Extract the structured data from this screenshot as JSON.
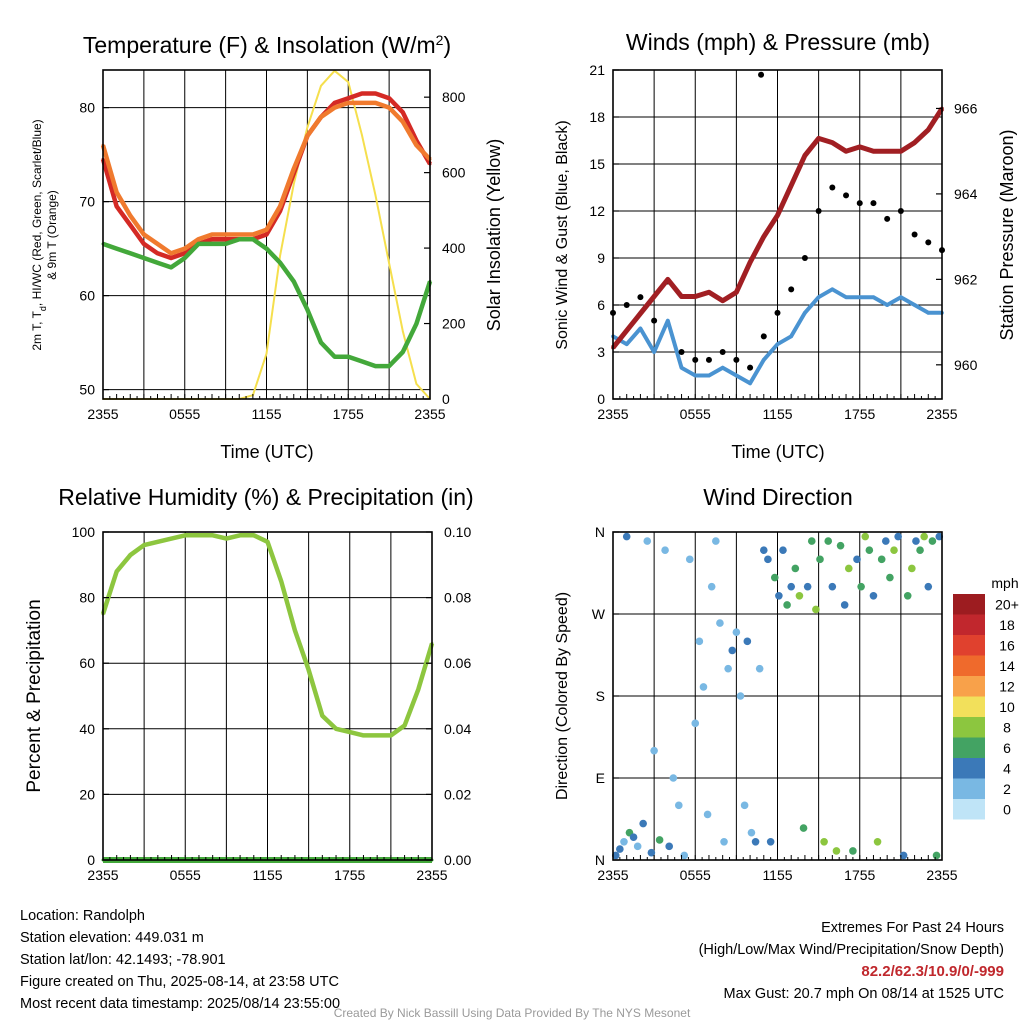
{
  "chart_data": [
    {
      "type": "line",
      "title": "Temperature (F) & Insolation (W/m",
      "title_sup": "2",
      "title_close": ")",
      "xlabel": "Time (UTC)",
      "ylabel_line1": "2m T, T",
      "ylabel_sub": "d",
      "ylabel_line1_rest": ", HI/WC (Red, Green, Scarlet/Blue)",
      "ylabel_line2": "& 9m T (Orange)",
      "ylabel_right": "Solar Insolation (Yellow)",
      "x_ticks": [
        "2355",
        "0555",
        "1155",
        "1755",
        "2355"
      ],
      "ylim": [
        49,
        84
      ],
      "y_ticks": [
        50,
        60,
        70,
        80
      ],
      "ylim_right": [
        0,
        872
      ],
      "y_ticks_right": [
        0,
        200,
        400,
        600,
        800
      ],
      "x": [
        0,
        1,
        2,
        3,
        4,
        5,
        6,
        7,
        8,
        9,
        10,
        11,
        12,
        13,
        14,
        15,
        16,
        17,
        18,
        19,
        20,
        21,
        22,
        23,
        24
      ],
      "series": [
        {
          "name": "2m T",
          "color": "#d42a25",
          "values": [
            74.5,
            69.5,
            67.5,
            65.5,
            64.5,
            64.0,
            64.5,
            65.5,
            66.0,
            66.0,
            66.0,
            66.0,
            66.5,
            69.0,
            73.0,
            77.0,
            79.0,
            80.5,
            81.0,
            81.5,
            81.5,
            81.0,
            79.5,
            76.5,
            74.0
          ]
        },
        {
          "name": "9m T",
          "color": "#f07a2e",
          "values": [
            76.0,
            71.0,
            68.5,
            66.5,
            65.5,
            64.5,
            65.0,
            66.0,
            66.5,
            66.5,
            66.5,
            66.5,
            67.0,
            69.5,
            73.5,
            77.0,
            79.0,
            80.0,
            80.5,
            80.5,
            80.5,
            80.0,
            78.5,
            76.0,
            74.5
          ]
        },
        {
          "name": "Td",
          "color": "#43a83a",
          "values": [
            65.5,
            65.0,
            64.5,
            64.0,
            63.5,
            63.0,
            64.0,
            65.5,
            65.5,
            65.5,
            66.0,
            66.0,
            65.0,
            63.5,
            61.5,
            58.5,
            55.0,
            53.5,
            53.5,
            53.0,
            52.5,
            52.5,
            54.0,
            57.0,
            61.5
          ]
        }
      ],
      "insolation": {
        "name": "Solar Insolation",
        "color": "#f5df4d",
        "values": [
          0,
          0,
          0,
          0,
          0,
          0,
          0,
          0,
          0,
          0,
          0,
          10,
          120,
          380,
          570,
          720,
          830,
          870,
          840,
          700,
          540,
          360,
          180,
          40,
          0
        ]
      }
    },
    {
      "type": "scatter",
      "title": "Winds (mph) & Pressure (mb)",
      "xlabel": "Time (UTC)",
      "ylabel": "Sonic Wind & Gust (Blue, Black)",
      "ylabel_right": "Station Pressure (Maroon)",
      "x_ticks": [
        "2355",
        "0555",
        "1155",
        "1755",
        "2355"
      ],
      "ylim": [
        0,
        21
      ],
      "y_ticks": [
        0,
        3,
        6,
        9,
        12,
        15,
        18,
        21
      ],
      "ylim_right": [
        959.2,
        966.9
      ],
      "y_ticks_right": [
        960,
        962,
        964,
        966
      ],
      "x": [
        0,
        1,
        2,
        3,
        4,
        5,
        6,
        7,
        8,
        9,
        10,
        11,
        12,
        13,
        14,
        15,
        16,
        17,
        18,
        19,
        20,
        21,
        22,
        23,
        24
      ],
      "series": [
        {
          "name": "Sonic Wind",
          "color": "#4a93d1",
          "values": [
            4.0,
            3.5,
            4.5,
            3.0,
            5.0,
            2.0,
            1.5,
            1.5,
            2.0,
            1.5,
            1.0,
            2.5,
            3.5,
            4.0,
            5.5,
            6.5,
            7.0,
            6.5,
            6.5,
            6.5,
            6.0,
            6.5,
            6.0,
            5.5,
            5.5
          ]
        },
        {
          "name": "Gust",
          "color": "#000000",
          "values": [
            5.5,
            6.0,
            6.5,
            5.0,
            7.5,
            3.0,
            2.5,
            2.5,
            3.0,
            2.5,
            2.0,
            4.0,
            5.5,
            7.0,
            9.0,
            12.0,
            13.5,
            13.0,
            12.5,
            12.5,
            11.5,
            12.0,
            10.5,
            10.0,
            9.5
          ]
        },
        {
          "name": "Station Pressure",
          "color": "#a11f23",
          "values": [
            960.4,
            960.8,
            961.2,
            961.6,
            962.0,
            961.6,
            961.6,
            961.7,
            961.5,
            961.7,
            962.4,
            963.0,
            963.5,
            964.2,
            964.9,
            965.3,
            965.2,
            965.0,
            965.1,
            965.0,
            965.0,
            965.0,
            965.2,
            965.5,
            966.0
          ]
        }
      ],
      "max_gust": {
        "x": 10.8,
        "value": 20.7
      }
    },
    {
      "type": "line",
      "title": "Relative Humidity (%) & Precipitation (in)",
      "ylabel": "Percent & Precipitation",
      "x_ticks": [
        "2355",
        "0555",
        "1155",
        "1755",
        "2355"
      ],
      "ylim": [
        0,
        100
      ],
      "y_ticks": [
        0,
        20,
        40,
        60,
        80,
        100
      ],
      "ylim_right": [
        0,
        0.1
      ],
      "y_ticks_right": [
        "0.00",
        "0.02",
        "0.04",
        "0.06",
        "0.08",
        "0.10"
      ],
      "x": [
        0,
        1,
        2,
        3,
        4,
        5,
        6,
        7,
        8,
        9,
        10,
        11,
        12,
        13,
        14,
        15,
        16,
        17,
        18,
        19,
        20,
        21,
        22,
        23,
        24
      ],
      "series": [
        {
          "name": "Relative Humidity",
          "color": "#8dc63f",
          "values": [
            75,
            88,
            93,
            96,
            97,
            98,
            99,
            99,
            99,
            98,
            99,
            99,
            97,
            85,
            70,
            58,
            44,
            40,
            39,
            38,
            38,
            38,
            41,
            52,
            66
          ]
        },
        {
          "name": "Precipitation",
          "color": "#43a83a",
          "values": [
            0,
            0,
            0,
            0,
            0,
            0,
            0,
            0,
            0,
            0,
            0,
            0,
            0,
            0,
            0,
            0,
            0,
            0,
            0,
            0,
            0,
            0,
            0,
            0,
            0
          ]
        }
      ]
    },
    {
      "type": "scatter",
      "title": "Wind Direction",
      "ylabel": "Direction (Colored By Speed)",
      "x_ticks": [
        "2355",
        "0555",
        "1155",
        "1755",
        "2355"
      ],
      "y_ticks": [
        "N",
        "E",
        "S",
        "W",
        "N"
      ],
      "ylim": [
        0,
        360
      ],
      "colorbar_label": "mph",
      "colorbar_levels": [
        "20+",
        "18",
        "16",
        "14",
        "12",
        "10",
        "8",
        "6",
        "4",
        "2",
        "0"
      ],
      "colorbar_colors": [
        "#9d1c20",
        "#c1272d",
        "#e0412e",
        "#ef6a2c",
        "#f8a14a",
        "#f2e05b",
        "#8cc63f",
        "#43a363",
        "#3b79b8",
        "#79b8e3",
        "#bfe4f7"
      ],
      "points": [
        [
          0.2,
          5,
          4
        ],
        [
          0.5,
          12,
          4
        ],
        [
          0.8,
          20,
          2
        ],
        [
          1.0,
          355,
          4
        ],
        [
          1.2,
          30,
          6
        ],
        [
          1.5,
          25,
          4
        ],
        [
          1.8,
          15,
          2
        ],
        [
          2.2,
          40,
          4
        ],
        [
          2.5,
          350,
          2
        ],
        [
          2.8,
          8,
          4
        ],
        [
          3.0,
          120,
          2
        ],
        [
          3.4,
          22,
          6
        ],
        [
          3.8,
          340,
          2
        ],
        [
          4.1,
          15,
          4
        ],
        [
          4.4,
          90,
          2
        ],
        [
          4.8,
          60,
          2
        ],
        [
          5.2,
          5,
          2
        ],
        [
          5.6,
          330,
          2
        ],
        [
          6.0,
          150,
          2
        ],
        [
          6.3,
          240,
          2
        ],
        [
          6.6,
          190,
          2
        ],
        [
          6.9,
          50,
          2
        ],
        [
          7.2,
          300,
          2
        ],
        [
          7.5,
          350,
          2
        ],
        [
          7.8,
          260,
          2
        ],
        [
          8.1,
          20,
          2
        ],
        [
          8.4,
          210,
          2
        ],
        [
          8.7,
          230,
          4
        ],
        [
          9.0,
          250,
          2
        ],
        [
          9.3,
          180,
          2
        ],
        [
          9.6,
          60,
          2
        ],
        [
          9.8,
          240,
          4
        ],
        [
          10.1,
          30,
          2
        ],
        [
          10.4,
          20,
          4
        ],
        [
          10.7,
          210,
          2
        ],
        [
          11.0,
          340,
          4
        ],
        [
          11.3,
          330,
          4
        ],
        [
          11.5,
          20,
          4
        ],
        [
          11.8,
          310,
          6
        ],
        [
          12.1,
          290,
          4
        ],
        [
          12.4,
          340,
          4
        ],
        [
          12.7,
          280,
          6
        ],
        [
          13.0,
          300,
          4
        ],
        [
          13.3,
          320,
          6
        ],
        [
          13.6,
          290,
          8
        ],
        [
          13.9,
          35,
          6
        ],
        [
          14.2,
          300,
          4
        ],
        [
          14.5,
          350,
          6
        ],
        [
          14.8,
          275,
          8
        ],
        [
          15.1,
          330,
          6
        ],
        [
          15.4,
          20,
          8
        ],
        [
          15.7,
          350,
          6
        ],
        [
          16.0,
          300,
          4
        ],
        [
          16.3,
          10,
          8
        ],
        [
          16.6,
          345,
          6
        ],
        [
          16.9,
          280,
          4
        ],
        [
          17.2,
          320,
          8
        ],
        [
          17.5,
          10,
          6
        ],
        [
          17.8,
          330,
          4
        ],
        [
          18.1,
          300,
          6
        ],
        [
          18.4,
          355,
          8
        ],
        [
          18.7,
          340,
          6
        ],
        [
          19.0,
          290,
          4
        ],
        [
          19.3,
          20,
          8
        ],
        [
          19.6,
          330,
          6
        ],
        [
          19.9,
          350,
          4
        ],
        [
          20.2,
          310,
          6
        ],
        [
          20.5,
          340,
          8
        ],
        [
          20.8,
          355,
          4
        ],
        [
          21.2,
          5,
          4
        ],
        [
          21.5,
          290,
          6
        ],
        [
          21.8,
          320,
          8
        ],
        [
          22.1,
          350,
          4
        ],
        [
          22.4,
          340,
          6
        ],
        [
          22.7,
          355,
          8
        ],
        [
          23.0,
          300,
          4
        ],
        [
          23.3,
          350,
          6
        ],
        [
          23.6,
          5,
          6
        ],
        [
          23.8,
          355,
          4
        ]
      ]
    }
  ],
  "footer": {
    "location": "Location: Randolph",
    "elevation": "Station elevation: 449.031 m",
    "latlon": "Station lat/lon: 42.1493; -78.901",
    "created": "Figure created on Thu, 2025-08-14, at 23:58 UTC",
    "recent": "Most recent data timestamp: 2025/08/14 23:55:00",
    "extremes_title": "Extremes For Past 24 Hours",
    "extremes_legend": "(High/Low/Max Wind/Precipitation/Snow Depth)",
    "extremes_values": "82.2/62.3/10.9/0/-999",
    "max_gust": "Max Gust: 20.7 mph On 08/14 at 1525 UTC"
  },
  "credit": "Created By Nick Bassill Using Data Provided By The NYS Mesonet"
}
